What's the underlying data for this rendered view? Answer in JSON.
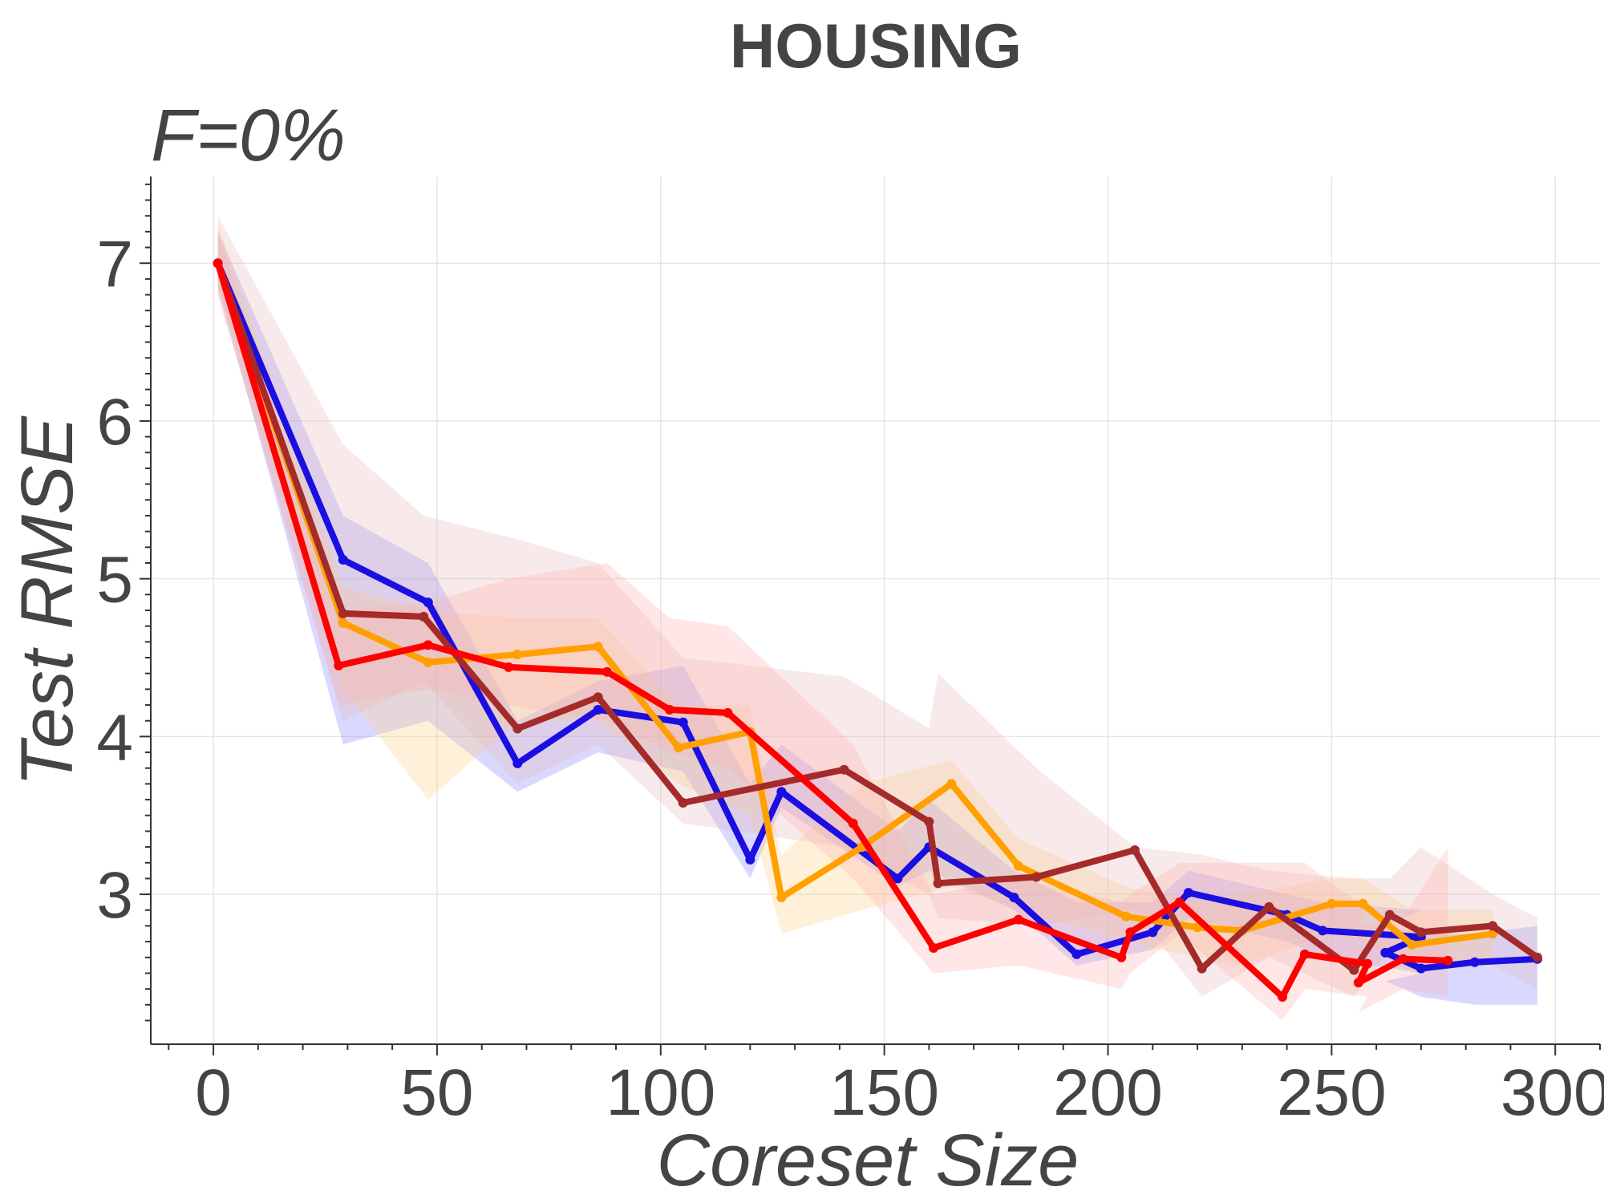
{
  "chart_data": {
    "type": "line",
    "title": "HOUSING",
    "subtitle": "F=0%",
    "xlabel": "Coreset Size",
    "ylabel": "Test RMSE",
    "xlim": [
      -14,
      310
    ],
    "ylim": [
      2.05,
      7.55
    ],
    "xticks": [
      0,
      50,
      100,
      150,
      200,
      250,
      300
    ],
    "yticks": [
      3,
      4,
      5,
      6,
      7
    ],
    "grid": true,
    "legend": "none",
    "series": [
      {
        "color": "#1a0fe0",
        "band_color": "#8080ff",
        "x": [
          1,
          29,
          48,
          68,
          86,
          105,
          120,
          127,
          153,
          160,
          179,
          193,
          210,
          218,
          240,
          248,
          270,
          262,
          270,
          282,
          296
        ],
        "y": [
          7.0,
          5.12,
          4.85,
          3.83,
          4.17,
          4.09,
          3.22,
          3.65,
          3.1,
          3.3,
          2.98,
          2.62,
          2.76,
          3.01,
          2.87,
          2.77,
          2.73,
          2.63,
          2.53,
          2.57,
          2.59
        ],
        "lower": [
          6.85,
          3.95,
          4.1,
          3.65,
          3.9,
          3.78,
          3.1,
          3.55,
          3.05,
          3.15,
          2.9,
          2.55,
          2.65,
          2.85,
          2.7,
          2.6,
          2.5,
          2.45,
          2.35,
          2.3,
          2.3
        ],
        "upper": [
          7.2,
          5.4,
          5.1,
          4.1,
          4.35,
          4.45,
          3.7,
          3.95,
          3.4,
          3.6,
          3.15,
          2.95,
          2.95,
          3.15,
          3.0,
          2.95,
          2.9,
          2.8,
          2.75,
          2.75,
          2.8
        ]
      },
      {
        "color": "#ffa000",
        "band_color": "#ffd080",
        "x": [
          1,
          29,
          48,
          68,
          86,
          104,
          120,
          127,
          145,
          165,
          180,
          204,
          220,
          230,
          250,
          257,
          268,
          286
        ],
        "y": [
          7.0,
          4.72,
          4.47,
          4.52,
          4.57,
          3.93,
          4.03,
          2.98,
          3.3,
          3.7,
          3.18,
          2.86,
          2.79,
          2.77,
          2.94,
          2.94,
          2.68,
          2.75
        ],
        "lower": [
          6.85,
          4.3,
          3.6,
          4.1,
          4.1,
          3.7,
          3.5,
          2.75,
          2.9,
          3.05,
          2.9,
          2.7,
          2.6,
          2.55,
          2.75,
          2.7,
          2.5,
          2.55
        ],
        "upper": [
          7.25,
          4.95,
          4.8,
          4.75,
          4.75,
          4.2,
          4.2,
          3.25,
          3.7,
          3.85,
          3.35,
          3.05,
          2.95,
          3.0,
          3.1,
          3.1,
          2.9,
          2.9
        ]
      },
      {
        "color": "#a52a2a",
        "band_color": "#e8b8b8",
        "x": [
          1,
          29,
          47,
          68,
          86,
          105,
          141,
          160,
          162,
          184,
          206,
          221,
          236,
          255,
          263,
          270,
          286,
          296
        ],
        "y": [
          7.0,
          4.78,
          4.76,
          4.05,
          4.25,
          3.58,
          3.79,
          3.46,
          3.07,
          3.11,
          3.28,
          2.53,
          2.92,
          2.52,
          2.87,
          2.76,
          2.8,
          2.6
        ],
        "lower": [
          6.8,
          4.1,
          4.35,
          3.7,
          3.95,
          3.45,
          3.3,
          3.0,
          2.85,
          2.8,
          2.9,
          2.35,
          2.6,
          2.35,
          2.65,
          2.55,
          2.55,
          2.4
        ],
        "upper": [
          7.3,
          5.85,
          5.4,
          5.25,
          5.1,
          4.5,
          4.38,
          4.05,
          4.4,
          3.8,
          3.3,
          3.25,
          3.15,
          3.1,
          3.1,
          3.3,
          3.0,
          2.85
        ]
      },
      {
        "color": "#ff0000",
        "band_color": "#ffb0b0",
        "x": [
          1,
          28,
          48,
          66,
          88,
          102,
          115,
          143,
          161,
          180,
          203,
          205,
          216,
          239,
          244,
          258,
          256,
          266,
          276
        ],
        "y": [
          7.0,
          4.45,
          4.58,
          4.44,
          4.41,
          4.17,
          4.15,
          3.45,
          2.66,
          2.84,
          2.6,
          2.76,
          2.95,
          2.35,
          2.62,
          2.56,
          2.44,
          2.59,
          2.58
        ],
        "lower": [
          6.8,
          4.2,
          4.3,
          4.2,
          4.1,
          3.9,
          3.8,
          3.1,
          2.5,
          2.55,
          2.4,
          2.5,
          2.75,
          2.2,
          2.4,
          2.35,
          2.25,
          2.4,
          2.35
        ],
        "upper": [
          7.2,
          4.8,
          4.85,
          5.0,
          5.1,
          4.75,
          4.7,
          3.95,
          3.0,
          3.1,
          2.95,
          3.0,
          3.2,
          3.2,
          3.2,
          2.9,
          2.8,
          2.85,
          3.3
        ]
      }
    ]
  }
}
